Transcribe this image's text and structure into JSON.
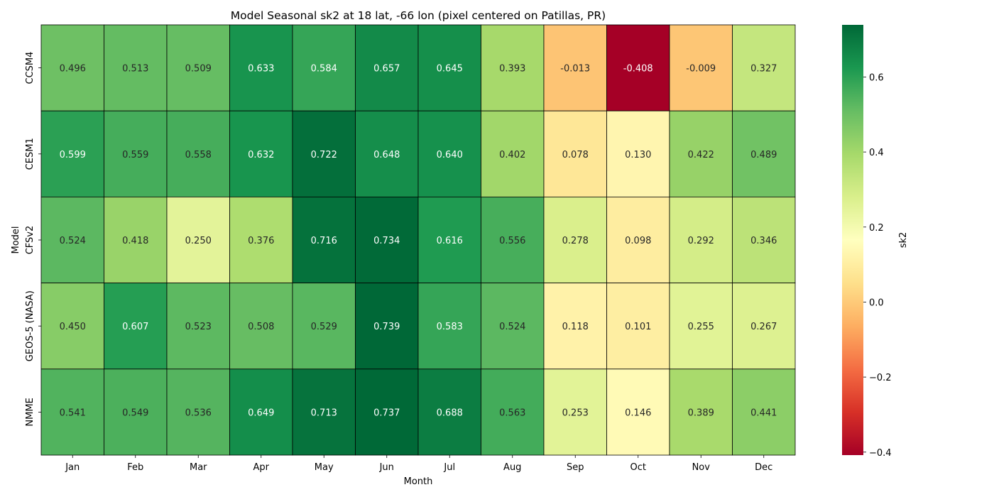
{
  "chart_data": {
    "type": "heatmap",
    "title": "Model Seasonal sk2 at 18 lat, -66 lon (pixel centered on Patillas, PR)",
    "xlabel": "Month",
    "ylabel": "Model",
    "x_categories": [
      "Jan",
      "Feb",
      "Mar",
      "Apr",
      "May",
      "Jun",
      "Jul",
      "Aug",
      "Sep",
      "Oct",
      "Nov",
      "Dec"
    ],
    "y_categories": [
      "CCSM4",
      "CESM1",
      "CFSv2",
      "GEOS-5 (NASA)",
      "NMME"
    ],
    "values": [
      [
        0.496,
        0.513,
        0.509,
        0.633,
        0.584,
        0.657,
        0.645,
        0.393,
        -0.013,
        -0.408,
        -0.009,
        0.327
      ],
      [
        0.599,
        0.559,
        0.558,
        0.632,
        0.722,
        0.648,
        0.64,
        0.402,
        0.078,
        0.13,
        0.422,
        0.489
      ],
      [
        0.524,
        0.418,
        0.25,
        0.376,
        0.716,
        0.734,
        0.616,
        0.556,
        0.278,
        0.098,
        0.292,
        0.346
      ],
      [
        0.45,
        0.607,
        0.523,
        0.508,
        0.529,
        0.739,
        0.583,
        0.524,
        0.118,
        0.101,
        0.255,
        0.267
      ],
      [
        0.541,
        0.549,
        0.536,
        0.649,
        0.713,
        0.737,
        0.688,
        0.563,
        0.253,
        0.146,
        0.389,
        0.441
      ]
    ],
    "colormap": "RdYlGn",
    "vmin": -0.408,
    "vmax": 0.739,
    "colorbar": {
      "label": "sk2",
      "ticks": [
        -0.4,
        -0.2,
        0.0,
        0.2,
        0.4,
        0.6
      ],
      "tick_labels": [
        "−0.4",
        "−0.2",
        "0.0",
        "0.2",
        "0.4",
        "0.6"
      ]
    },
    "annotation_format": "3 decimals",
    "grid": true
  }
}
